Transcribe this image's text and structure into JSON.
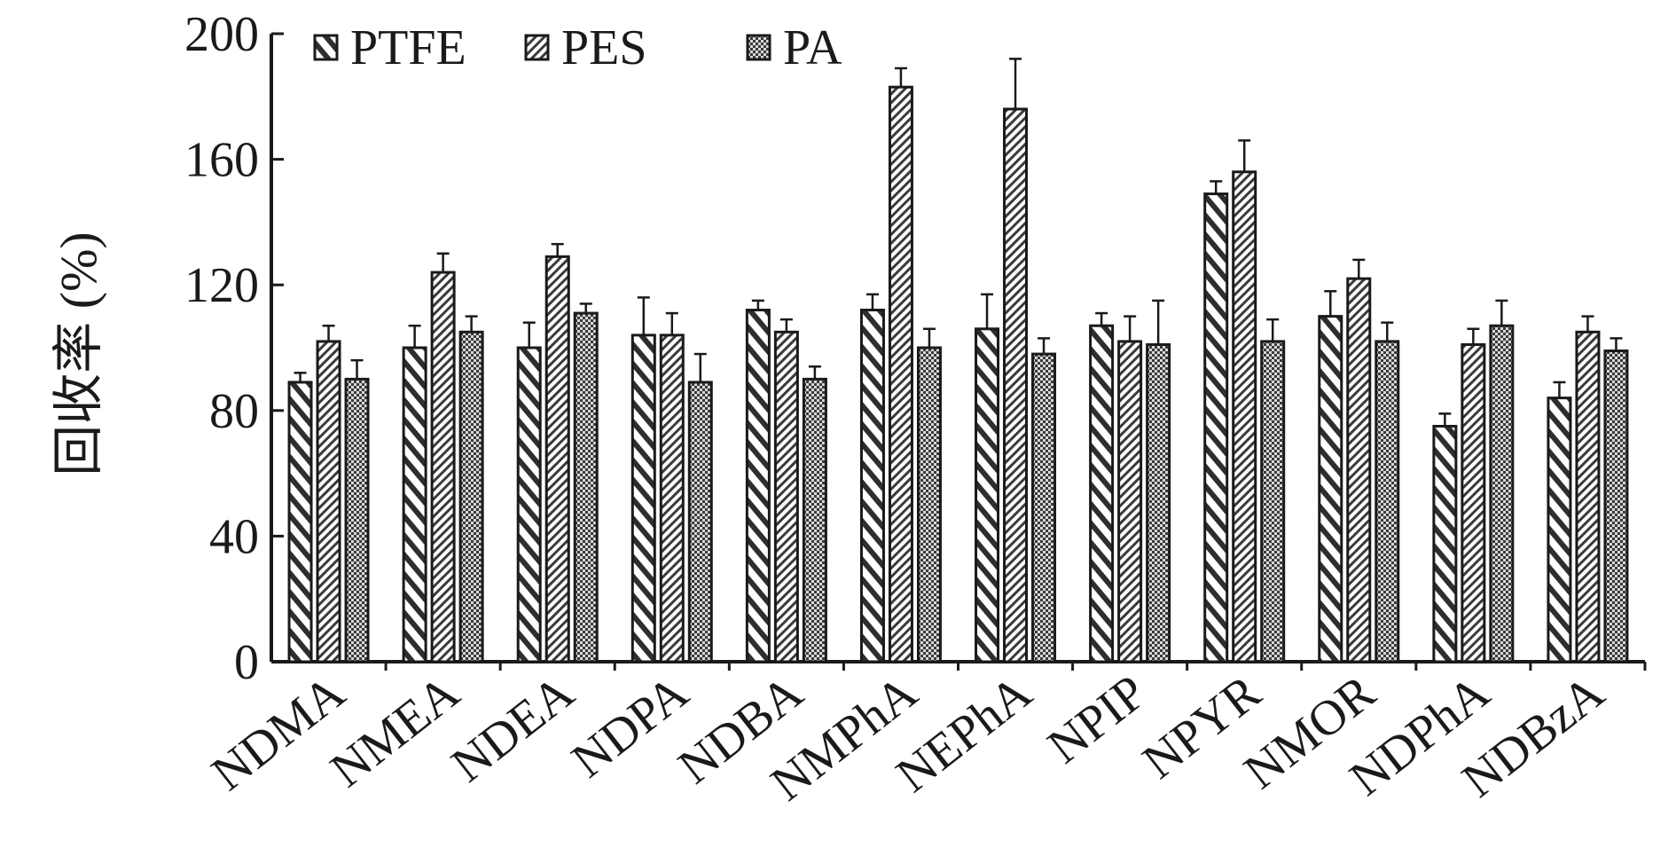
{
  "chart_data": {
    "type": "bar",
    "categories": [
      "NDMA",
      "NMEA",
      "NDEA",
      "NDPA",
      "NDBA",
      "NMPhA",
      "NEPhA",
      "NPIP",
      "NPYR",
      "NMOR",
      "NDPhA",
      "NDBzA"
    ],
    "series": [
      {
        "name": "PTFE",
        "values": [
          89,
          100,
          100,
          104,
          112,
          112,
          106,
          107,
          149,
          110,
          75,
          84
        ],
        "errors": [
          3,
          7,
          8,
          12,
          3,
          5,
          11,
          4,
          4,
          8,
          4,
          5
        ]
      },
      {
        "name": "PES",
        "values": [
          102,
          124,
          129,
          104,
          105,
          183,
          176,
          102,
          156,
          122,
          101,
          105
        ],
        "errors": [
          5,
          6,
          4,
          7,
          4,
          6,
          16,
          8,
          10,
          6,
          5,
          5
        ]
      },
      {
        "name": "PA",
        "values": [
          90,
          105,
          111,
          89,
          90,
          100,
          98,
          101,
          102,
          102,
          107,
          99
        ],
        "errors": [
          6,
          5,
          3,
          9,
          4,
          6,
          5,
          14,
          7,
          6,
          8,
          4
        ]
      }
    ],
    "ylabel": "回收率 (%)",
    "xlabel": "",
    "ylim": [
      0,
      200
    ],
    "yticks": [
      0,
      40,
      80,
      120,
      160,
      200
    ],
    "grid": false,
    "legend_position": "top-left"
  }
}
